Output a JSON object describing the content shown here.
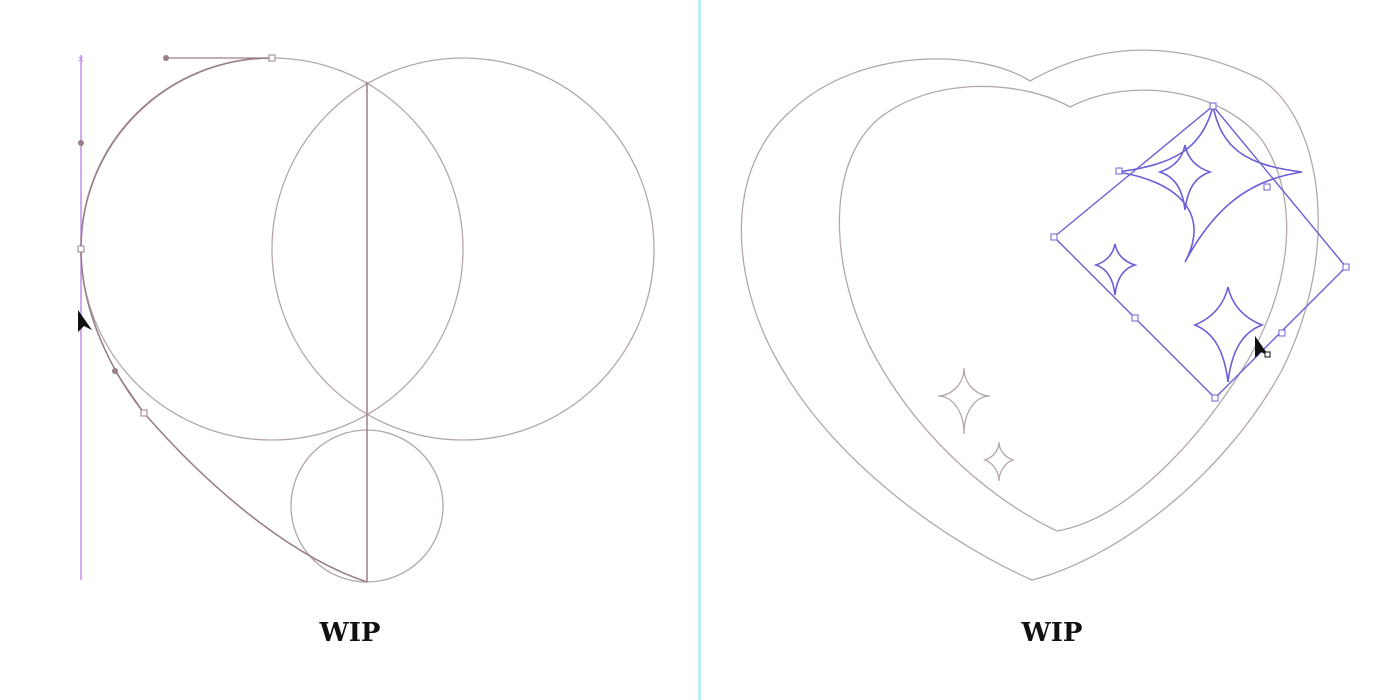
{
  "captions": {
    "left": "WIP",
    "right": "WIP"
  },
  "colors": {
    "construction_stroke": "#b3a7ab",
    "path_stroke": "#9a7f8a",
    "guide": "#c08ee8",
    "selection": "#6b5fd6",
    "divider": "#b6f0f0",
    "cursor": "#111111"
  },
  "icons": {
    "cursor": "arrow-cursor-icon"
  }
}
